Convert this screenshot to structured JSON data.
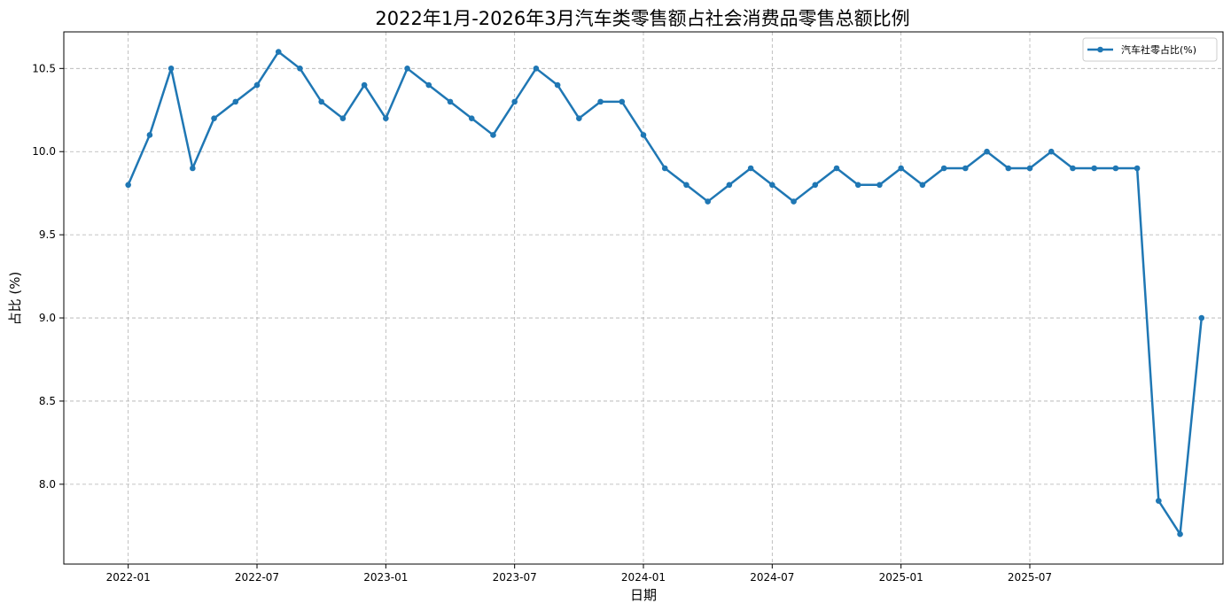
{
  "chart_data": {
    "type": "line",
    "title": "2022年1月-2026年3月汽车类零售额占社会消费品零售总额比例",
    "xlabel": "日期",
    "ylabel": "占比 (%)",
    "x_ticks": [
      "2022-01",
      "2022-07",
      "2023-01",
      "2023-07",
      "2024-01",
      "2024-07",
      "2025-01",
      "2025-07"
    ],
    "y_ticks": [
      "8.0",
      "8.5",
      "9.0",
      "9.5",
      "10.0",
      "10.5"
    ],
    "ylim": [
      7.52,
      10.72
    ],
    "xlim": [
      "2021-10",
      "2026-04"
    ],
    "grid": true,
    "legend_position": "upper right",
    "series": [
      {
        "name": "汽车社零占比(%)",
        "color": "#1f77b4",
        "marker": "circle",
        "x": [
          "2022-01",
          "2022-02",
          "2022-03",
          "2022-04",
          "2022-05",
          "2022-06",
          "2022-07",
          "2022-08",
          "2022-09",
          "2022-10",
          "2022-11",
          "2022-12",
          "2023-01",
          "2023-02",
          "2023-03",
          "2023-04",
          "2023-05",
          "2023-06",
          "2023-07",
          "2023-08",
          "2023-09",
          "2023-10",
          "2023-11",
          "2023-12",
          "2024-01",
          "2024-02",
          "2024-03",
          "2024-04",
          "2024-05",
          "2024-06",
          "2024-07",
          "2024-08",
          "2024-09",
          "2024-10",
          "2024-11",
          "2024-12",
          "2025-01",
          "2025-02",
          "2025-03",
          "2025-04",
          "2025-05",
          "2025-06",
          "2025-07",
          "2025-08",
          "2025-09",
          "2025-10",
          "2025-11",
          "2025-12",
          "2026-01",
          "2026-02",
          "2026-03"
        ],
        "values": [
          9.8,
          10.1,
          10.5,
          9.9,
          10.2,
          10.3,
          10.4,
          10.6,
          10.5,
          10.3,
          10.2,
          10.4,
          10.2,
          10.5,
          10.4,
          10.3,
          10.2,
          10.1,
          10.3,
          10.5,
          10.4,
          10.2,
          10.3,
          10.3,
          10.1,
          9.9,
          9.8,
          9.7,
          9.8,
          9.9,
          9.8,
          9.7,
          9.8,
          9.9,
          9.8,
          9.8,
          9.9,
          9.8,
          9.9,
          9.9,
          10.0,
          9.9,
          9.9,
          10.0,
          9.9,
          9.9,
          9.9,
          9.9,
          7.9,
          7.7,
          9.0
        ]
      }
    ]
  }
}
